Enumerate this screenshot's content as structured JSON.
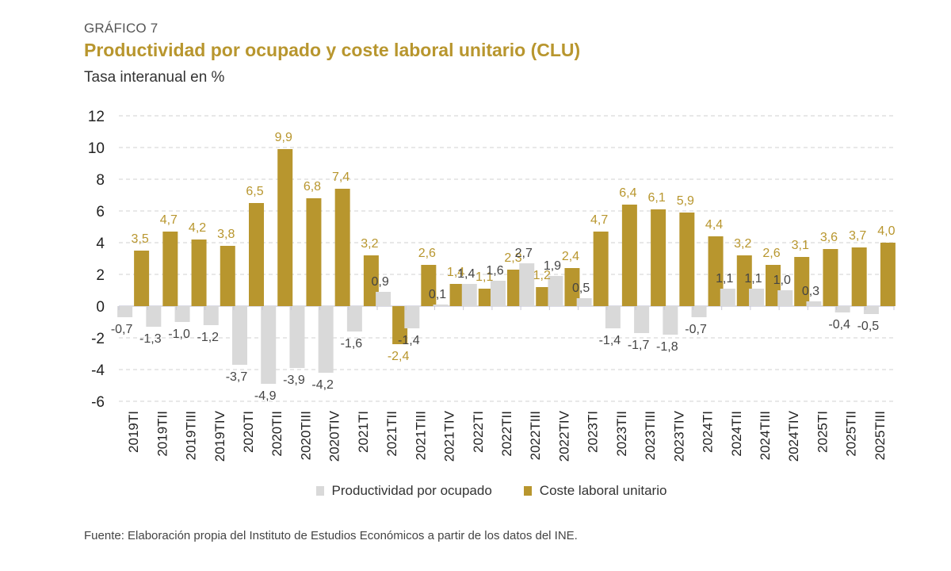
{
  "header": {
    "label": "GRÁFICO 7",
    "title": "Productividad por ocupado y coste laboral unitario (CLU)",
    "subtitle": "Tasa interanual en %"
  },
  "source": "Fuente: Elaboración propia del Instituto de Estudios Económicos a partir de los datos del INE.",
  "colors": {
    "productividad": "#d9d9d9",
    "clu": "#b8962e",
    "clu_label": "#b8962e",
    "prod_label": "#444444",
    "grid": "#d0d0d0"
  },
  "chart_data": {
    "type": "bar",
    "title": "Productividad por ocupado y coste laboral unitario (CLU)",
    "subtitle": "Tasa interanual en %",
    "xlabel": "",
    "ylabel": "",
    "ylim": [
      -6,
      12
    ],
    "yticks": [
      12,
      10,
      8,
      6,
      4,
      2,
      0,
      -2,
      -4,
      -6
    ],
    "ytick_labels": [
      "12",
      "10",
      "8",
      "6",
      "4",
      "2",
      "0",
      "-2",
      "-4",
      "-6"
    ],
    "grid": true,
    "legend_position": "bottom",
    "categories": [
      "2019TI",
      "2019TII",
      "2019TIII",
      "2019TIV",
      "2020TI",
      "2020TII",
      "2020TIII",
      "2020TIV",
      "2021TI",
      "2021TII",
      "2021TIII",
      "2021TIV",
      "2022TI",
      "2022TII",
      "2022TIII",
      "2022TIV",
      "2023TI",
      "2023TII",
      "2023TIII",
      "2023TIV",
      "2024TI",
      "2024TII",
      "2024TIII",
      "2024TIV",
      "2025TI",
      "2025TII",
      "2025TIII"
    ],
    "series": [
      {
        "name": "Productividad por ocupado",
        "values": [
          -0.7,
          -1.3,
          -1.0,
          -1.2,
          -3.7,
          -4.9,
          -3.9,
          -4.2,
          -1.6,
          0.9,
          -1.4,
          0.1,
          1.4,
          1.6,
          2.7,
          1.9,
          0.5,
          -1.4,
          -1.7,
          -1.8,
          -0.7,
          1.1,
          1.1,
          1.0,
          0.3,
          -0.4,
          -0.5
        ],
        "labels": [
          "-0,7",
          "-1,3",
          "-1,0",
          "-1,2",
          "-3,7",
          "-4,9",
          "-3,9",
          "-4,2",
          "-1,6",
          "0,9",
          "-1,4",
          "0,1",
          "1,4",
          "1,6",
          "2,7",
          "1,9",
          "0,5",
          "-1,4",
          "-1,7",
          "-1,8",
          "-0,7",
          "1,1",
          "1,1",
          "1,0",
          "0,3",
          "-0,4",
          "-0,5"
        ]
      },
      {
        "name": "Coste laboral unitario",
        "values": [
          3.5,
          4.7,
          4.2,
          3.8,
          6.5,
          9.9,
          6.8,
          7.4,
          3.2,
          -2.4,
          2.6,
          1.4,
          1.1,
          2.3,
          1.2,
          2.4,
          4.7,
          6.4,
          6.1,
          5.9,
          4.4,
          3.2,
          2.6,
          3.1,
          3.6,
          3.7,
          4.0
        ],
        "labels": [
          "3,5",
          "4,7",
          "4,2",
          "3,8",
          "6,5",
          "9,9",
          "6,8",
          "7,4",
          "3,2",
          "-2,4",
          "2,6",
          "1,4",
          "1,1",
          "2,3",
          "1,2",
          "2,4",
          "4,7",
          "6,4",
          "6,1",
          "5,9",
          "4,4",
          "3,2",
          "2,6",
          "3,1",
          "3,6",
          "3,7",
          "4,0"
        ]
      }
    ]
  },
  "legend": {
    "items": [
      {
        "label": "Productividad por ocupado"
      },
      {
        "label": "Coste laboral unitario"
      }
    ]
  }
}
